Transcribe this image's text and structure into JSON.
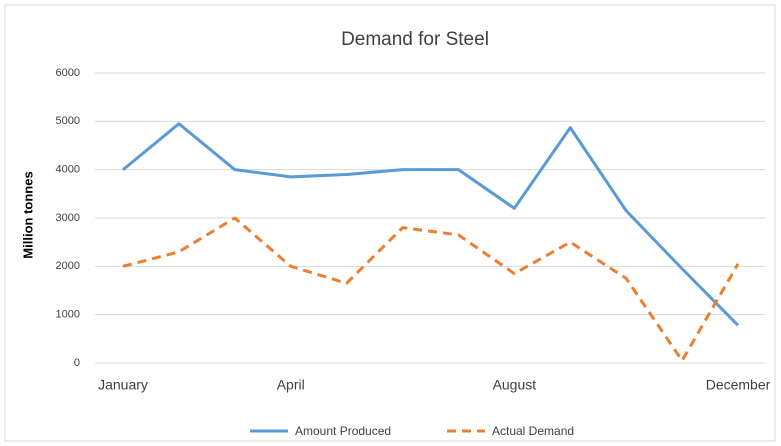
{
  "chart_data": {
    "type": "line",
    "title": "Demand for Steel",
    "y_label": "Million tonnes",
    "categories": [
      "January",
      null,
      null,
      "April",
      null,
      null,
      null,
      "August",
      null,
      null,
      null,
      "December"
    ],
    "series": [
      {
        "name": "Amount Produced",
        "color": "#5b9bd5",
        "dashed": false,
        "values": [
          4000,
          4950,
          4000,
          3850,
          3900,
          4000,
          4000,
          3200,
          4870,
          3150,
          1950,
          780
        ]
      },
      {
        "name": "Actual Demand",
        "color": "#ed7d31",
        "dashed": true,
        "values": [
          2000,
          2300,
          3000,
          2000,
          1650,
          2800,
          2650,
          1850,
          2500,
          1750,
          50,
          2050
        ]
      }
    ],
    "ylim": [
      0,
      6000
    ],
    "yticks": [
      0,
      1000,
      2000,
      3000,
      4000,
      5000,
      6000
    ],
    "grid": true,
    "legend": "bottom"
  }
}
